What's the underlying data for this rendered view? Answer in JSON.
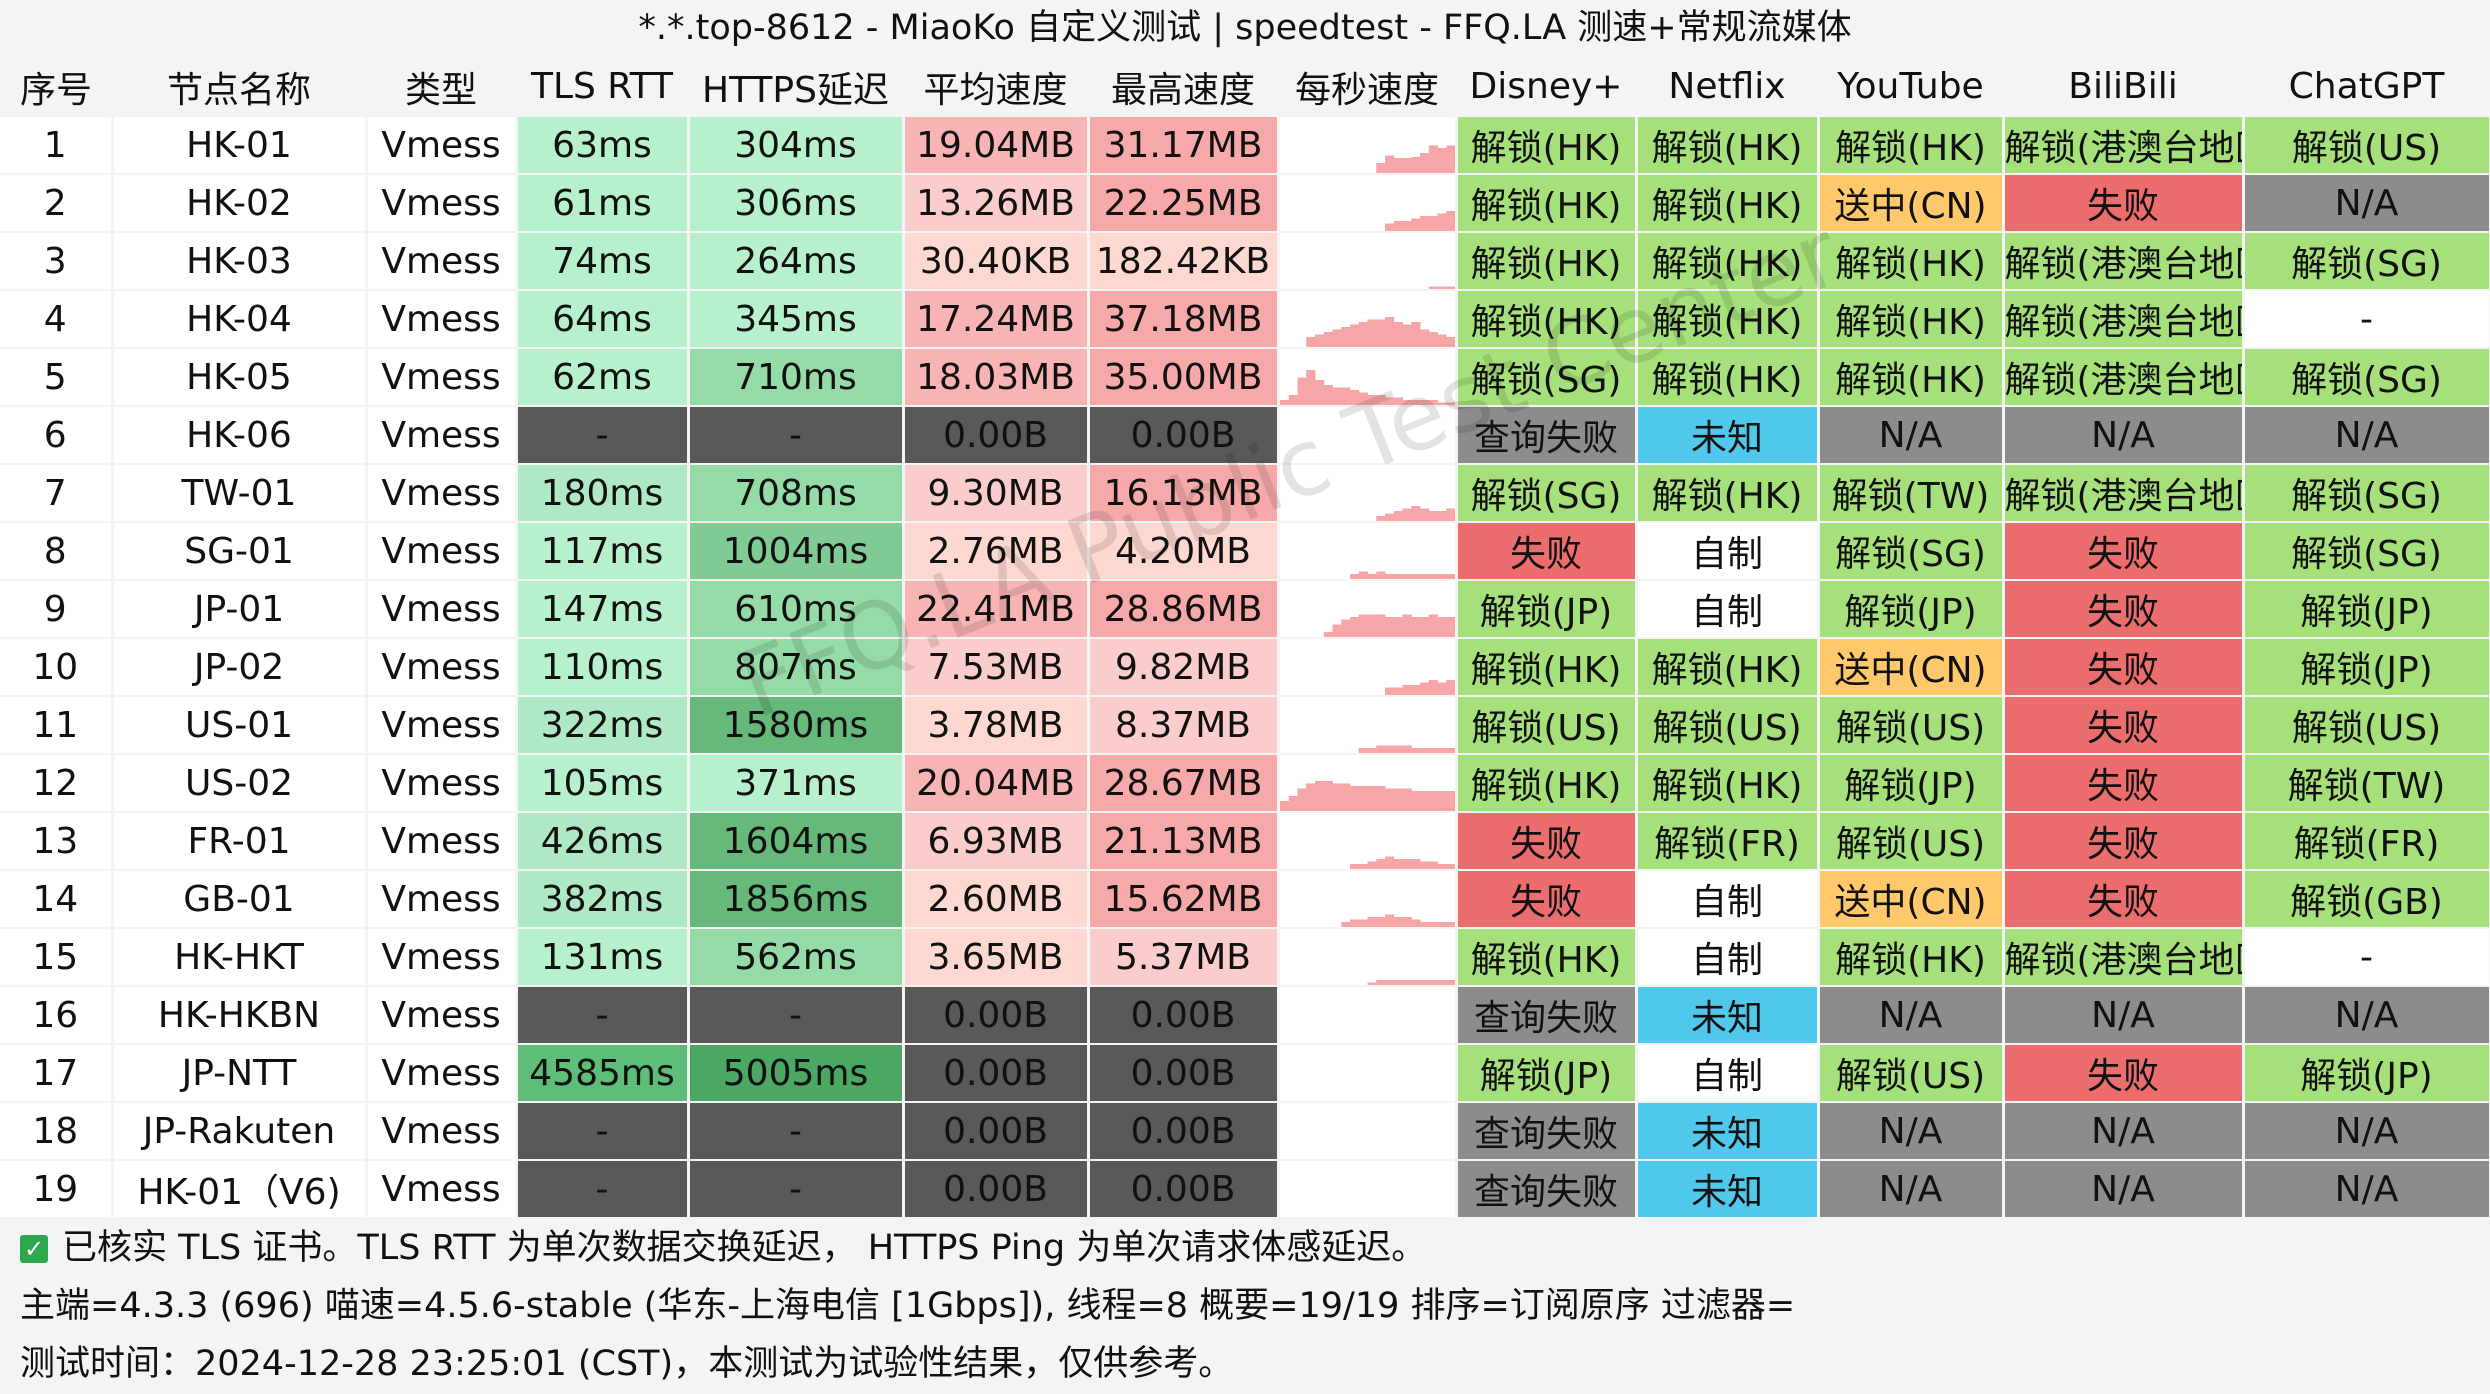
{
  "title": "*.*.top-8612 - MiaoKo 自定义测试 | speedtest - FFQ.LA 测速+常规流媒体",
  "columns": [
    "序号",
    "节点名称",
    "类型",
    "TLS RTT",
    "HTTPS延迟",
    "平均速度",
    "最高速度",
    "每秒速度",
    "Disney+",
    "Netflix",
    "YouTube",
    "BiliBili",
    "ChatGPT"
  ],
  "colors": {
    "unlock_green": "#a6e07a",
    "fail_red": "#ec6d6d",
    "pending_orange": "#ffc96b",
    "unknown_blue": "#50c8ec",
    "na_gray": "#8c8c8c",
    "dead_dark": "#555555",
    "self_white": "#ffffff",
    "speed_pink": "#f6a6a6"
  },
  "rows": [
    {
      "idx": "1",
      "name": "HK-01",
      "type": "Vmess",
      "tls": "63ms",
      "https": "304ms",
      "avg": "19.04MB",
      "max": "31.17MB",
      "disney": "解锁(HK)",
      "netflix": "解锁(HK)",
      "youtube": "解锁(HK)",
      "bili": "解锁(港澳台地区)",
      "gpt": "解锁(US)"
    },
    {
      "idx": "2",
      "name": "HK-02",
      "type": "Vmess",
      "tls": "61ms",
      "https": "306ms",
      "avg": "13.26MB",
      "max": "22.25MB",
      "disney": "解锁(HK)",
      "netflix": "解锁(HK)",
      "youtube": "送中(CN)",
      "bili": "失败",
      "gpt": "N/A"
    },
    {
      "idx": "3",
      "name": "HK-03",
      "type": "Vmess",
      "tls": "74ms",
      "https": "264ms",
      "avg": "30.40KB",
      "max": "182.42KB",
      "disney": "解锁(HK)",
      "netflix": "解锁(HK)",
      "youtube": "解锁(HK)",
      "bili": "解锁(港澳台地区)",
      "gpt": "解锁(SG)"
    },
    {
      "idx": "4",
      "name": "HK-04",
      "type": "Vmess",
      "tls": "64ms",
      "https": "345ms",
      "avg": "17.24MB",
      "max": "37.18MB",
      "disney": "解锁(HK)",
      "netflix": "解锁(HK)",
      "youtube": "解锁(HK)",
      "bili": "解锁(港澳台地区)",
      "gpt": "-"
    },
    {
      "idx": "5",
      "name": "HK-05",
      "type": "Vmess",
      "tls": "62ms",
      "https": "710ms",
      "avg": "18.03MB",
      "max": "35.00MB",
      "disney": "解锁(SG)",
      "netflix": "解锁(HK)",
      "youtube": "解锁(HK)",
      "bili": "解锁(港澳台地区)",
      "gpt": "解锁(SG)"
    },
    {
      "idx": "6",
      "name": "HK-06",
      "type": "Vmess",
      "tls": "-",
      "https": "-",
      "avg": "0.00B",
      "max": "0.00B",
      "disney": "查询失败",
      "netflix": "未知",
      "youtube": "N/A",
      "bili": "N/A",
      "gpt": "N/A"
    },
    {
      "idx": "7",
      "name": "TW-01",
      "type": "Vmess",
      "tls": "180ms",
      "https": "708ms",
      "avg": "9.30MB",
      "max": "16.13MB",
      "disney": "解锁(SG)",
      "netflix": "解锁(HK)",
      "youtube": "解锁(TW)",
      "bili": "解锁(港澳台地区)",
      "gpt": "解锁(SG)"
    },
    {
      "idx": "8",
      "name": "SG-01",
      "type": "Vmess",
      "tls": "117ms",
      "https": "1004ms",
      "avg": "2.76MB",
      "max": "4.20MB",
      "disney": "失败",
      "netflix": "自制",
      "youtube": "解锁(SG)",
      "bili": "失败",
      "gpt": "解锁(SG)"
    },
    {
      "idx": "9",
      "name": "JP-01",
      "type": "Vmess",
      "tls": "147ms",
      "https": "610ms",
      "avg": "22.41MB",
      "max": "28.86MB",
      "disney": "解锁(JP)",
      "netflix": "自制",
      "youtube": "解锁(JP)",
      "bili": "失败",
      "gpt": "解锁(JP)"
    },
    {
      "idx": "10",
      "name": "JP-02",
      "type": "Vmess",
      "tls": "110ms",
      "https": "807ms",
      "avg": "7.53MB",
      "max": "9.82MB",
      "disney": "解锁(HK)",
      "netflix": "解锁(HK)",
      "youtube": "送中(CN)",
      "bili": "失败",
      "gpt": "解锁(JP)"
    },
    {
      "idx": "11",
      "name": "US-01",
      "type": "Vmess",
      "tls": "322ms",
      "https": "1580ms",
      "avg": "3.78MB",
      "max": "8.37MB",
      "disney": "解锁(US)",
      "netflix": "解锁(US)",
      "youtube": "解锁(US)",
      "bili": "失败",
      "gpt": "解锁(US)"
    },
    {
      "idx": "12",
      "name": "US-02",
      "type": "Vmess",
      "tls": "105ms",
      "https": "371ms",
      "avg": "20.04MB",
      "max": "28.67MB",
      "disney": "解锁(HK)",
      "netflix": "解锁(HK)",
      "youtube": "解锁(JP)",
      "bili": "失败",
      "gpt": "解锁(TW)"
    },
    {
      "idx": "13",
      "name": "FR-01",
      "type": "Vmess",
      "tls": "426ms",
      "https": "1604ms",
      "avg": "6.93MB",
      "max": "21.13MB",
      "disney": "失败",
      "netflix": "解锁(FR)",
      "youtube": "解锁(US)",
      "bili": "失败",
      "gpt": "解锁(FR)"
    },
    {
      "idx": "14",
      "name": "GB-01",
      "type": "Vmess",
      "tls": "382ms",
      "https": "1856ms",
      "avg": "2.60MB",
      "max": "15.62MB",
      "disney": "失败",
      "netflix": "自制",
      "youtube": "送中(CN)",
      "bili": "失败",
      "gpt": "解锁(GB)"
    },
    {
      "idx": "15",
      "name": "HK-HKT",
      "type": "Vmess",
      "tls": "131ms",
      "https": "562ms",
      "avg": "3.65MB",
      "max": "5.37MB",
      "disney": "解锁(HK)",
      "netflix": "自制",
      "youtube": "解锁(HK)",
      "bili": "解锁(港澳台地区)",
      "gpt": "-"
    },
    {
      "idx": "16",
      "name": "HK-HKBN",
      "type": "Vmess",
      "tls": "-",
      "https": "-",
      "avg": "0.00B",
      "max": "0.00B",
      "disney": "查询失败",
      "netflix": "未知",
      "youtube": "N/A",
      "bili": "N/A",
      "gpt": "N/A"
    },
    {
      "idx": "17",
      "name": "JP-NTT",
      "type": "Vmess",
      "tls": "4585ms",
      "https": "5005ms",
      "avg": "0.00B",
      "max": "0.00B",
      "disney": "解锁(JP)",
      "netflix": "自制",
      "youtube": "解锁(US)",
      "bili": "失败",
      "gpt": "解锁(JP)"
    },
    {
      "idx": "18",
      "name": "JP-Rakuten",
      "type": "Vmess",
      "tls": "-",
      "https": "-",
      "avg": "0.00B",
      "max": "0.00B",
      "disney": "查询失败",
      "netflix": "未知",
      "youtube": "N/A",
      "bili": "N/A",
      "gpt": "N/A"
    },
    {
      "idx": "19",
      "name": "HK-01（V6)",
      "type": "Vmess",
      "tls": "-",
      "https": "-",
      "avg": "0.00B",
      "max": "0.00B",
      "disney": "查询失败",
      "netflix": "未知",
      "youtube": "N/A",
      "bili": "N/A",
      "gpt": "N/A"
    }
  ],
  "footer": {
    "line1": "已核实 TLS 证书。TLS RTT 为单次数据交换延迟， HTTPS Ping 为单次请求体感延迟。",
    "line2": "主端=4.3.3 (696) 喵速=4.5.6-stable (华东-上海电信 [1Gbps]), 线程=8 概要=19/19 排序=订阅原序 过滤器=",
    "line3": "测试时间：2024-12-28 23:25:01 (CST)，本测试为试验性结果，仅供参考。"
  },
  "watermark": "FFQ.LA Public Test Center"
}
